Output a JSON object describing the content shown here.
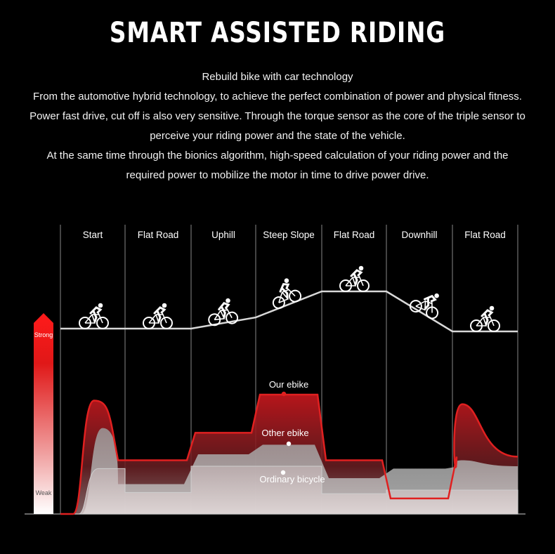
{
  "header": {
    "title": "SMART ASSISTED RIDING",
    "intro": [
      "Rebuild bike with car technology",
      "From the automotive hybrid technology, to achieve the perfect combination of power and physical fitness. Power fast drive, cut off is also very sensitive. Through the torque sensor as the core of the triple sensor to perceive your riding power and the state of the vehicle.",
      "At the same time through the bionics algorithm, high-speed calculation of your riding power and the required power to mobilize the motor in time to drive power drive."
    ]
  },
  "chart_data": {
    "type": "area",
    "title": "",
    "categories": [
      "Start",
      "Flat Road",
      "Uphill",
      "Steep Slope",
      "Flat Road",
      "Downhill",
      "Flat Road"
    ],
    "y_scale": {
      "top_label": "Strong",
      "bottom_label": "Weak"
    },
    "terrain_profile": [
      0,
      0,
      0.15,
      1,
      1,
      0,
      0
    ],
    "series": [
      {
        "name": "Our ebike",
        "values": [
          0.82,
          0.45,
          0.68,
          1.0,
          0.45,
          0.13,
          0.48
        ],
        "start_peak": 0.95,
        "end_peak": 0.92,
        "color": "#e02020"
      },
      {
        "name": "Other ebike",
        "values": [
          0.4,
          0.25,
          0.5,
          0.58,
          0.3,
          0.38,
          0.4
        ],
        "start_peak": 0.72,
        "end_peak": 0.45,
        "color": "#c8c8c8"
      },
      {
        "name": "Ordinary bicycle",
        "values": [
          0.38,
          0.18,
          0.4,
          0.4,
          0.17,
          0.2,
          0.2
        ],
        "color": "#a8a8a8"
      }
    ],
    "colors": {
      "accent": "#e02020",
      "background": "#000000"
    }
  }
}
